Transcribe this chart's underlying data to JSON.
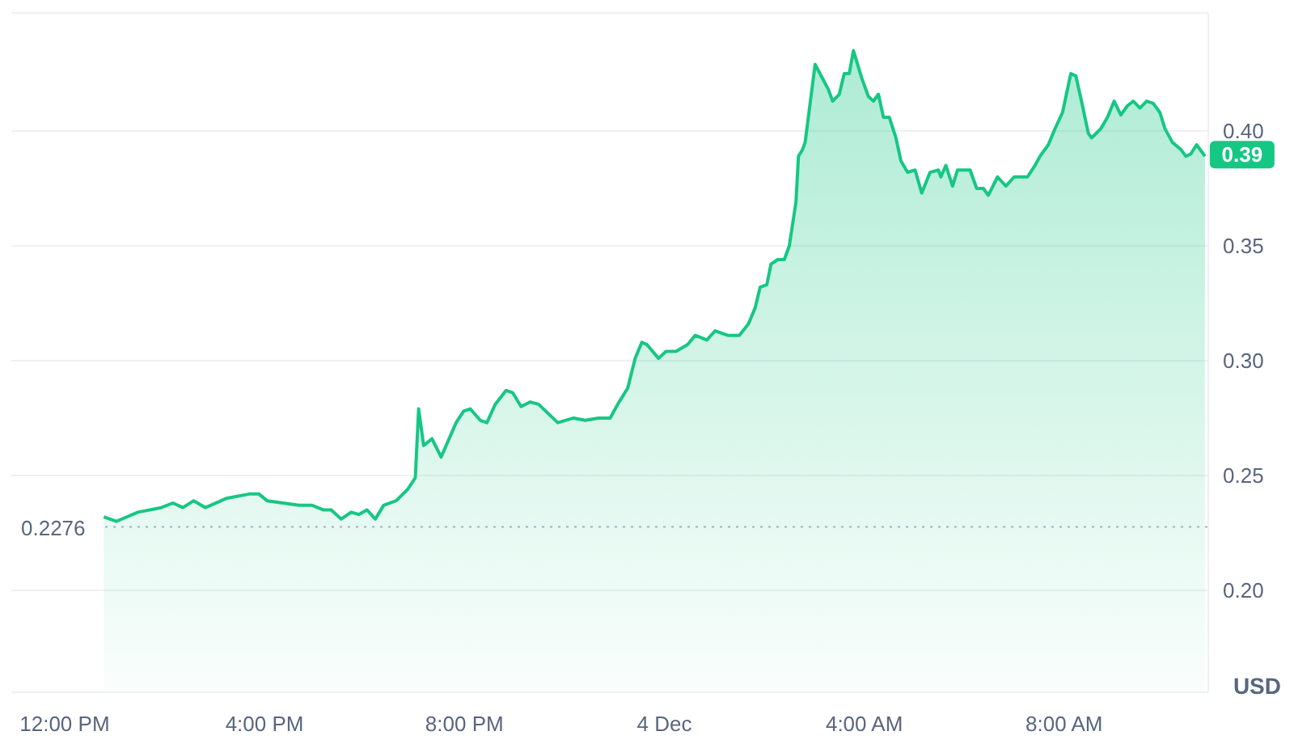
{
  "chart_data": {
    "type": "area",
    "ylabel": "USD",
    "x": [
      "--12-03T12:47",
      "--12-03T13:02",
      "--12-03T13:28",
      "--12-03T13:56",
      "--12-03T14:10",
      "--12-03T14:22",
      "--12-03T14:35",
      "--12-03T14:49",
      "--12-03T15:14",
      "--12-03T15:43",
      "--12-03T15:53",
      "--12-03T16:03",
      "--12-03T16:22",
      "--12-03T16:41",
      "--12-03T16:57",
      "--12-03T17:11",
      "--12-03T17:20",
      "--12-03T17:32",
      "--12-03T17:44",
      "--12-03T17:53",
      "--12-03T18:03",
      "--12-03T18:13",
      "--12-03T18:23",
      "--12-03T18:38",
      "--12-03T18:52",
      "--12-03T19:01",
      "--12-03T19:05",
      "--12-03T19:11",
      "--12-03T19:21",
      "--12-03T19:32",
      "--12-03T19:50",
      "--12-03T19:59",
      "--12-03T20:07",
      "--12-03T20:19",
      "--12-03T20:27",
      "--12-03T20:37",
      "--12-03T20:50",
      "--12-03T20:58",
      "--12-03T21:08",
      "--12-03T21:19",
      "--12-03T21:29",
      "--12-03T21:52",
      "--12-03T22:11",
      "--12-03T22:25",
      "--12-03T22:41",
      "--12-03T22:55",
      "--12-03T23:04",
      "--12-03T23:16",
      "--12-03T23:25",
      "--12-03T23:33",
      "--12-03T23:39",
      "--12-03T23:53",
      "--12-04T00:02",
      "--12-04T00:14",
      "--12-04T00:28",
      "--12-04T00:37",
      "--12-04T00:51",
      "--12-04T01:01",
      "--12-04T01:16",
      "--12-04T01:30",
      "--12-04T01:41",
      "--12-04T01:49",
      "--12-04T01:55",
      "--12-04T02:03",
      "--12-04T02:08",
      "--12-04T02:16",
      "--12-04T02:24",
      "--12-04T02:30",
      "--12-04T02:38",
      "--12-04T02:41",
      "--12-04T02:46",
      "--12-04T02:49",
      "--12-04T03:01",
      "--12-04T03:17",
      "--12-04T03:22",
      "--12-04T03:30",
      "--12-04T03:36",
      "--12-04T03:42",
      "--12-04T03:47",
      "--12-04T03:57",
      "--12-04T04:05",
      "--12-04T04:11",
      "--12-04T04:17",
      "--12-04T04:23",
      "--12-04T04:30",
      "--12-04T04:38",
      "--12-04T04:44",
      "--12-04T04:52",
      "--12-04T05:01",
      "--12-04T05:09",
      "--12-04T05:19",
      "--12-04T05:29",
      "--12-04T05:32",
      "--12-04T05:38",
      "--12-04T05:46",
      "--12-04T05:52",
      "--12-04T06:07",
      "--12-04T06:15",
      "--12-04T06:23",
      "--12-04T06:29",
      "--12-04T06:40",
      "--12-04T06:50",
      "--12-04T07:00",
      "--12-04T07:16",
      "--12-04T07:25",
      "--12-04T07:31",
      "--12-04T07:41",
      "--12-04T07:49",
      "--12-04T07:58",
      "--12-04T08:08",
      "--12-04T08:14",
      "--12-04T08:22",
      "--12-04T08:29",
      "--12-04T08:33",
      "--12-04T08:44",
      "--12-04T08:52",
      "--12-04T09:00",
      "--12-04T09:08",
      "--12-04T09:16",
      "--12-04T09:23",
      "--12-04T09:31",
      "--12-04T09:39",
      "--12-04T09:47",
      "--12-04T09:55",
      "--12-04T10:01",
      "--12-04T10:10",
      "--12-04T10:20",
      "--12-04T10:26",
      "--12-04T10:32",
      "--12-04T10:39",
      "--12-04T10:49"
    ],
    "series": [
      {
        "color": "#16c784",
        "values": [
          0.232,
          0.23,
          0.234,
          0.236,
          0.238,
          0.236,
          0.239,
          0.236,
          0.24,
          0.242,
          0.242,
          0.239,
          0.238,
          0.237,
          0.237,
          0.235,
          0.235,
          0.231,
          0.234,
          0.233,
          0.235,
          0.231,
          0.237,
          0.239,
          0.244,
          0.249,
          0.279,
          0.263,
          0.266,
          0.258,
          0.273,
          0.278,
          0.279,
          0.274,
          0.273,
          0.281,
          0.287,
          0.286,
          0.28,
          0.282,
          0.281,
          0.273,
          0.275,
          0.274,
          0.275,
          0.275,
          0.281,
          0.288,
          0.301,
          0.308,
          0.307,
          0.301,
          0.304,
          0.304,
          0.307,
          0.311,
          0.309,
          0.313,
          0.311,
          0.311,
          0.316,
          0.323,
          0.332,
          0.333,
          0.342,
          0.344,
          0.344,
          0.35,
          0.369,
          0.389,
          0.392,
          0.395,
          0.429,
          0.418,
          0.413,
          0.416,
          0.425,
          0.425,
          0.435,
          0.423,
          0.415,
          0.413,
          0.416,
          0.406,
          0.406,
          0.397,
          0.387,
          0.382,
          0.383,
          0.373,
          0.382,
          0.383,
          0.38,
          0.385,
          0.376,
          0.383,
          0.383,
          0.375,
          0.375,
          0.372,
          0.38,
          0.376,
          0.38,
          0.38,
          0.385,
          0.389,
          0.394,
          0.401,
          0.408,
          0.425,
          0.424,
          0.411,
          0.399,
          0.397,
          0.401,
          0.406,
          0.413,
          0.407,
          0.411,
          0.413,
          0.41,
          0.413,
          0.412,
          0.408,
          0.401,
          0.395,
          0.392,
          0.389,
          0.39,
          0.394,
          0.389
        ]
      }
    ],
    "xlim": [
      "--12-03T10:56",
      "--12-04T10:53"
    ],
    "ylim": [
      0.1556,
      0.4514
    ],
    "xticks": [
      {
        "value": "--12-03T12:00",
        "label": "12:00 PM"
      },
      {
        "value": "--12-03T16:00",
        "label": "4:00 PM"
      },
      {
        "value": "--12-03T20:00",
        "label": "8:00 PM"
      },
      {
        "value": "--12-04T00:00",
        "label": "4 Dec"
      },
      {
        "value": "--12-04T04:00",
        "label": "4:00 AM"
      },
      {
        "value": "--12-04T08:00",
        "label": "8:00 AM"
      }
    ],
    "yticks": [
      {
        "value": 0.2,
        "label": "0.20"
      },
      {
        "value": 0.25,
        "label": "0.25"
      },
      {
        "value": 0.3,
        "label": "0.30"
      },
      {
        "value": 0.35,
        "label": "0.35"
      },
      {
        "value": 0.4,
        "label": "0.40"
      }
    ],
    "grid": "y",
    "ref_lines": [
      {
        "axis": "y",
        "value": 0.2276,
        "label": "0.2276",
        "line_style": "dotted",
        "color": "#a6b0c3"
      }
    ],
    "annotations": [
      {
        "text": "0.39",
        "x": "--12-04T10:49",
        "y": 0.39
      }
    ]
  }
}
